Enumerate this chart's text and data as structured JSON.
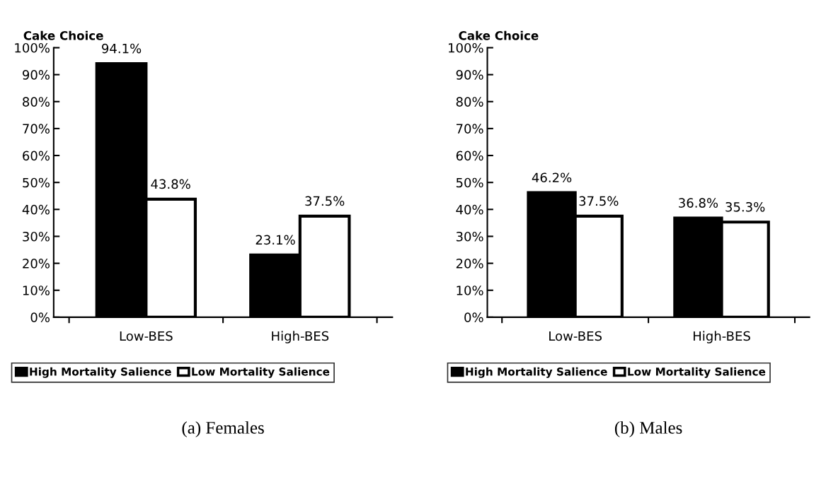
{
  "chart_data": [
    {
      "type": "bar",
      "title": "Cake Choice",
      "categories": [
        "Low-BES",
        "High-BES"
      ],
      "series": [
        {
          "name": "High Mortality Salience",
          "color": "#000000",
          "values": [
            94.1,
            23.1
          ],
          "value_labels": [
            "94.1%",
            "23.1%"
          ]
        },
        {
          "name": "Low Mortality Salience",
          "color": "#ffffff",
          "values": [
            43.8,
            37.5
          ],
          "value_labels": [
            "43.8%",
            "37.5%"
          ]
        }
      ],
      "ylim": [
        0,
        100
      ],
      "yticks": [
        {
          "value": 0,
          "label": "0%"
        },
        {
          "value": 10,
          "label": "10%"
        },
        {
          "value": 20,
          "label": "20%"
        },
        {
          "value": 30,
          "label": "30%"
        },
        {
          "value": 40,
          "label": "40%"
        },
        {
          "value": 50,
          "label": "50%"
        },
        {
          "value": 60,
          "label": "60%"
        },
        {
          "value": 70,
          "label": "70%"
        },
        {
          "value": 80,
          "label": "80%"
        },
        {
          "value": 90,
          "label": "90%"
        },
        {
          "value": 100,
          "label": "100%"
        }
      ],
      "grid": false,
      "legend": "bottom",
      "annotations": [
        "(a) Females"
      ]
    },
    {
      "type": "bar",
      "title": "Cake Choice",
      "categories": [
        "Low-BES",
        "High-BES"
      ],
      "series": [
        {
          "name": "High Mortality Salience",
          "color": "#000000",
          "values": [
            46.2,
            36.8
          ],
          "value_labels": [
            "46.2%",
            "36.8%"
          ]
        },
        {
          "name": "Low Mortality Salience",
          "color": "#ffffff",
          "values": [
            37.5,
            35.3
          ],
          "value_labels": [
            "37.5%",
            "35.3%"
          ]
        }
      ],
      "ylim": [
        0,
        100
      ],
      "yticks": [
        {
          "value": 0,
          "label": "0%"
        },
        {
          "value": 10,
          "label": "10%"
        },
        {
          "value": 20,
          "label": "20%"
        },
        {
          "value": 30,
          "label": "30%"
        },
        {
          "value": 40,
          "label": "40%"
        },
        {
          "value": 50,
          "label": "50%"
        },
        {
          "value": 60,
          "label": "60%"
        },
        {
          "value": 70,
          "label": "70%"
        },
        {
          "value": 80,
          "label": "80%"
        },
        {
          "value": 90,
          "label": "90%"
        },
        {
          "value": 100,
          "label": "100%"
        }
      ],
      "grid": false,
      "legend": "bottom",
      "annotations": [
        "(b) Males"
      ]
    }
  ]
}
